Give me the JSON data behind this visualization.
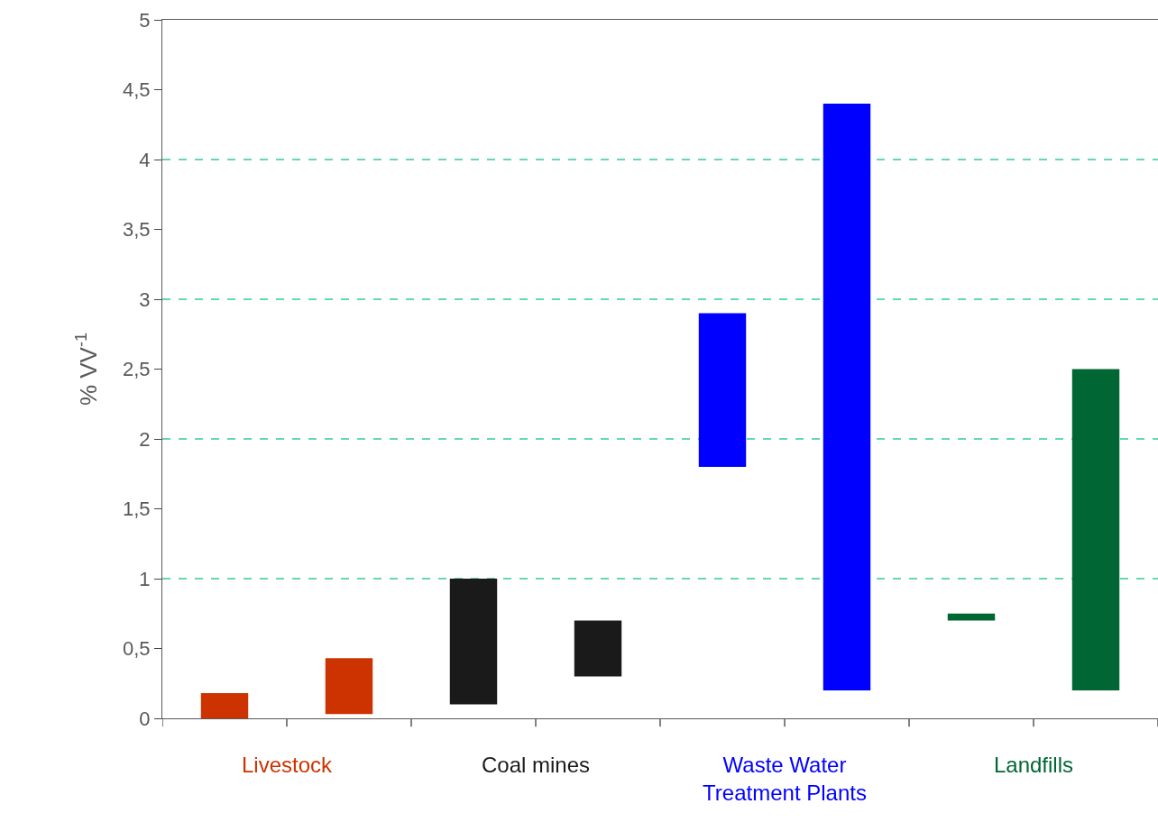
{
  "chart_data": {
    "type": "bar",
    "ylabel": "% VV$^{-1}$",
    "categories": [
      "Livestock",
      "Coal mines",
      "Waste Water Treatment Plants",
      "Landfills"
    ],
    "series": [
      {
        "colors": [
          "#cc3300",
          "#1a1a1a",
          "#0000ff",
          "#006633"
        ],
        "base": [
          0,
          0.1,
          1.8,
          0.7
        ],
        "values": [
          0.18,
          0.9,
          1.1,
          0.05
        ]
      },
      {
        "colors": [
          "#cc3300",
          "#1a1a1a",
          "#0000ff",
          "#006633"
        ],
        "base": [
          0.03,
          0.3,
          0.2,
          0.2
        ],
        "values": [
          0.4,
          0.4,
          4.2,
          2.3
        ]
      }
    ],
    "ylim": [
      0,
      5
    ],
    "yticks": [
      0,
      {
        "value": 0.5,
        "label": "0,5"
      },
      1,
      {
        "value": 1.5,
        "label": "1,5"
      },
      2,
      {
        "value": 2.5,
        "label": "2,5"
      },
      3,
      {
        "value": 3.5,
        "label": "3,5"
      },
      4,
      {
        "value": 4.5,
        "label": "4,5"
      },
      5
    ],
    "ref_lines": [
      {
        "axis": "y",
        "value": 1,
        "color": "#33cc99",
        "line_style": "dashed"
      },
      {
        "axis": "y",
        "value": 2,
        "color": "#33cc99",
        "line_style": "dashed"
      },
      {
        "axis": "y",
        "value": 3,
        "color": "#33cc99",
        "line_style": "dashed"
      },
      {
        "axis": "y",
        "value": 4,
        "color": "#33cc99",
        "line_style": "dashed"
      }
    ],
    "grid": false
  }
}
